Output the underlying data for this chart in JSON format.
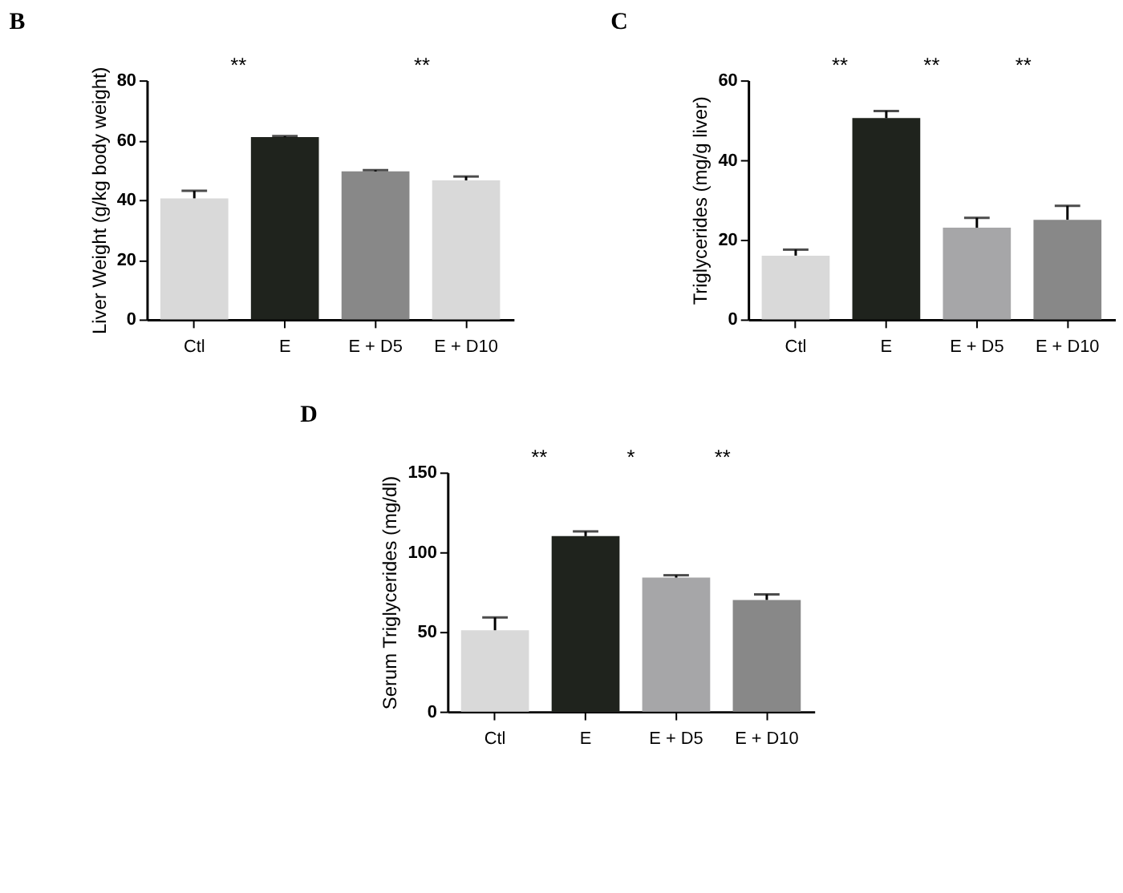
{
  "chart_data": [
    {
      "type": "bar",
      "title": "B",
      "ylabel": "Liver Weight (g/kg body weight)",
      "categories": [
        "Ctl",
        "E",
        "E + D5",
        "E + D10"
      ],
      "values": [
        40.5,
        61,
        49.5,
        46.5
      ],
      "colors": [
        "#d9d9d9",
        "#1f231d",
        "#888888",
        "#d9d9d9"
      ],
      "errors": [
        [
          40.5,
          43
        ],
        [
          61,
          61.3
        ],
        [
          49.5,
          49.9
        ],
        [
          46.5,
          47.8
        ]
      ],
      "ylim": [
        0,
        80
      ],
      "yticks": [
        0,
        20,
        40,
        60,
        80
      ],
      "grid": false,
      "annotations": [
        "**",
        "**"
      ]
    },
    {
      "type": "bar",
      "title": "C",
      "ylabel": "Triglycerides (mg/g liver)",
      "categories": [
        "Ctl",
        "E",
        "E + D5",
        "E + D10"
      ],
      "values": [
        16,
        50.5,
        23,
        25
      ],
      "colors": [
        "#d9d9d9",
        "#1f231d",
        "#a6a6a8",
        "#888888"
      ],
      "errors": [
        [
          16,
          17.5
        ],
        [
          50.5,
          52.3
        ],
        [
          23,
          25.5
        ],
        [
          25,
          28.5
        ]
      ],
      "ylim": [
        0,
        60
      ],
      "yticks": [
        0,
        20,
        40,
        60
      ],
      "grid": false,
      "annotations": [
        "**",
        "**",
        "**"
      ]
    },
    {
      "type": "bar",
      "title": "D",
      "ylabel": "Serum Triglycerides (mg/dl)",
      "categories": [
        "Ctl",
        "E",
        "E + D5",
        "E + D10"
      ],
      "values": [
        51,
        110,
        84,
        70
      ],
      "colors": [
        "#d9d9d9",
        "#1f231d",
        "#a6a6a8",
        "#888888"
      ],
      "errors": [
        [
          51,
          59
        ],
        [
          110,
          113
        ],
        [
          84,
          85.5
        ],
        [
          70,
          73.5
        ]
      ],
      "ylim": [
        0,
        150
      ],
      "yticks": [
        0,
        50,
        100,
        150
      ],
      "grid": false,
      "annotations": [
        "**",
        "*",
        "**"
      ]
    }
  ]
}
